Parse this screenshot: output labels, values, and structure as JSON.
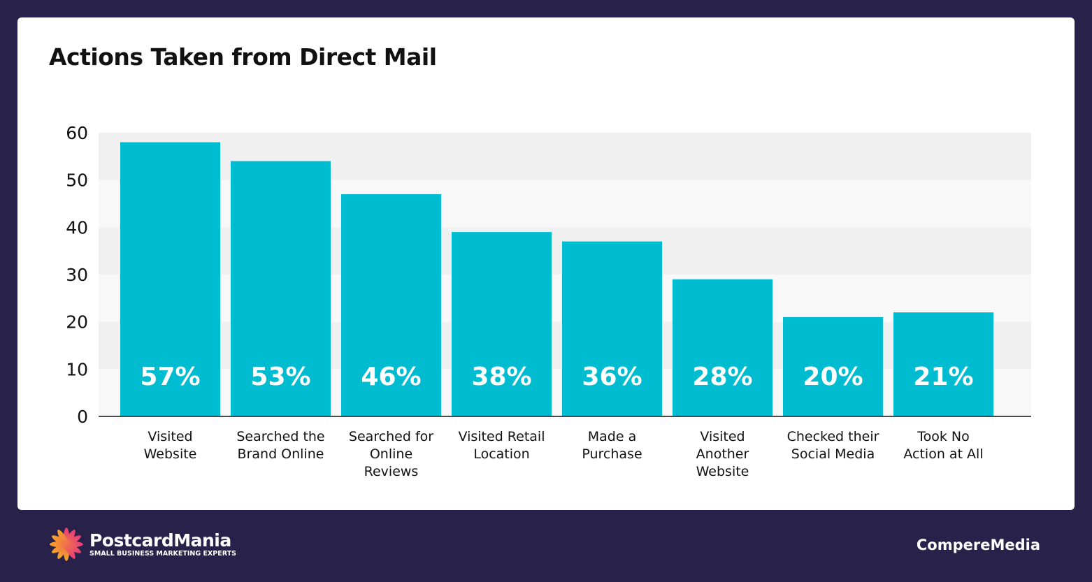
{
  "chart_data": {
    "type": "bar",
    "title": "Actions Taken from Direct Mail",
    "categories": [
      "Visited Website",
      "Searched the Brand Online",
      "Searched for Online Reviews",
      "Visited Retail Location",
      "Made a Purchase",
      "Visited Another Website",
      "Checked their Social Media",
      "Took No Action at All"
    ],
    "category_lines": [
      [
        "Visited",
        "Website"
      ],
      [
        "Searched the",
        "Brand Online"
      ],
      [
        "Searched for",
        "Online",
        "Reviews"
      ],
      [
        "Visited Retail",
        "Location"
      ],
      [
        "Made a",
        "Purchase"
      ],
      [
        "Visited",
        "Another",
        "Website"
      ],
      [
        "Checked their",
        "Social Media"
      ],
      [
        "Took No",
        "Action at All"
      ]
    ],
    "values": [
      57,
      53,
      46,
      38,
      36,
      28,
      20,
      21
    ],
    "data_labels": [
      "57%",
      "53%",
      "46%",
      "38%",
      "36%",
      "28%",
      "20%",
      "21%"
    ],
    "yticks": [
      0,
      10,
      20,
      30,
      40,
      50,
      60
    ],
    "ylim": [
      0,
      60
    ],
    "grid": "alternating bands",
    "bar_color": "#00bcd0",
    "xlabel": "",
    "ylabel": ""
  },
  "footer": {
    "brand": "PostcardMania",
    "tagline": "SMALL BUSINESS MARKETING EXPERTS",
    "partner": "CompereMedia"
  }
}
